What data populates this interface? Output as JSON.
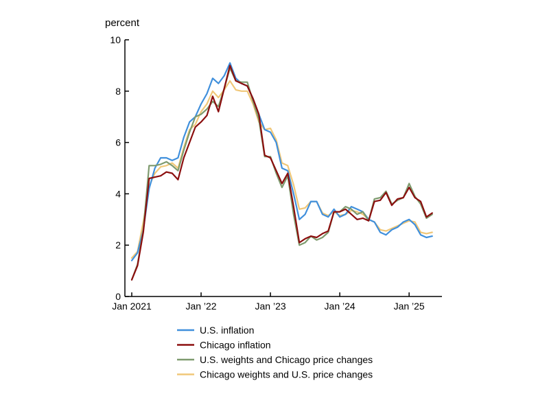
{
  "chart_data": {
    "type": "line",
    "title": "",
    "ylabel": "percent",
    "xlabel": "",
    "ylim": [
      0,
      10
    ],
    "yticks": [
      0,
      2,
      4,
      6,
      8,
      10
    ],
    "xlim": [
      "2021-01",
      "2025-05"
    ],
    "xticks": [
      {
        "date": "2021-01",
        "label": "Jan 2021"
      },
      {
        "date": "2022-01",
        "label": "Jan ’22"
      },
      {
        "date": "2023-01",
        "label": "Jan ’23"
      },
      {
        "date": "2024-01",
        "label": "Jan ’24"
      },
      {
        "date": "2025-01",
        "label": "Jan ’25"
      }
    ],
    "grid": false,
    "legend_position": "bottom",
    "x": [
      "2021-01",
      "2021-02",
      "2021-03",
      "2021-04",
      "2021-05",
      "2021-06",
      "2021-07",
      "2021-08",
      "2021-09",
      "2021-10",
      "2021-11",
      "2021-12",
      "2022-01",
      "2022-02",
      "2022-03",
      "2022-04",
      "2022-05",
      "2022-06",
      "2022-07",
      "2022-08",
      "2022-09",
      "2022-10",
      "2022-11",
      "2022-12",
      "2023-01",
      "2023-02",
      "2023-03",
      "2023-04",
      "2023-05",
      "2023-06",
      "2023-07",
      "2023-08",
      "2023-09",
      "2023-10",
      "2023-11",
      "2023-12",
      "2024-01",
      "2024-02",
      "2024-03",
      "2024-04",
      "2024-05",
      "2024-06",
      "2024-07",
      "2024-08",
      "2024-09",
      "2024-10",
      "2024-11",
      "2024-12",
      "2025-01",
      "2025-02",
      "2025-03",
      "2025-04",
      "2025-05"
    ],
    "series": [
      {
        "name": "U.S. inflation",
        "color": "#3f8fdc",
        "values": [
          1.4,
          1.7,
          2.6,
          4.2,
          5.0,
          5.4,
          5.4,
          5.3,
          5.4,
          6.2,
          6.8,
          7.0,
          7.5,
          7.9,
          8.5,
          8.3,
          8.6,
          9.1,
          8.5,
          8.3,
          8.2,
          7.7,
          7.1,
          6.5,
          6.4,
          6.0,
          5.0,
          4.9,
          4.0,
          3.0,
          3.2,
          3.7,
          3.7,
          3.2,
          3.1,
          3.4,
          3.1,
          3.2,
          3.5,
          3.4,
          3.3,
          3.0,
          2.9,
          2.5,
          2.4,
          2.6,
          2.7,
          2.9,
          3.0,
          2.8,
          2.4,
          2.3,
          2.35
        ]
      },
      {
        "name": "Chicago inflation",
        "color": "#8b0e0e",
        "values": [
          0.65,
          1.2,
          2.5,
          4.6,
          4.65,
          4.7,
          4.85,
          4.8,
          4.55,
          5.4,
          6.0,
          6.6,
          6.8,
          7.05,
          7.8,
          7.2,
          8.1,
          9.0,
          8.4,
          8.3,
          8.2,
          7.7,
          7.1,
          5.5,
          5.4,
          4.9,
          4.4,
          4.8,
          3.5,
          2.1,
          2.25,
          2.35,
          2.3,
          2.45,
          2.55,
          3.3,
          3.3,
          3.4,
          3.2,
          3.0,
          3.05,
          2.95,
          3.7,
          3.75,
          4.05,
          3.55,
          3.8,
          3.85,
          4.25,
          3.85,
          3.7,
          3.1,
          3.25
        ]
      },
      {
        "name": "U.S. weights and Chicago price changes",
        "color": "#7e9a6e",
        "values": [
          0.65,
          1.25,
          2.6,
          5.1,
          5.1,
          5.15,
          5.25,
          5.1,
          4.9,
          5.7,
          6.4,
          7.0,
          7.1,
          7.3,
          7.6,
          7.4,
          8.1,
          8.9,
          8.4,
          8.35,
          8.35,
          7.6,
          6.9,
          5.45,
          5.45,
          4.8,
          4.25,
          4.7,
          3.2,
          2.0,
          2.1,
          2.35,
          2.2,
          2.3,
          2.5,
          3.3,
          3.3,
          3.5,
          3.4,
          3.2,
          3.3,
          2.95,
          3.8,
          3.85,
          4.1,
          3.6,
          3.75,
          3.85,
          4.4,
          3.9,
          3.6,
          3.05,
          3.2
        ]
      },
      {
        "name": "Chicago weights and U.S. price changes",
        "color": "#f0c778",
        "values": [
          1.5,
          1.75,
          2.9,
          4.3,
          4.8,
          5.05,
          5.1,
          5.2,
          5.0,
          5.8,
          6.5,
          6.7,
          7.2,
          7.5,
          8.0,
          7.75,
          8.05,
          8.4,
          8.05,
          8.0,
          8.0,
          7.5,
          6.8,
          6.5,
          6.55,
          6.1,
          5.2,
          5.1,
          4.35,
          3.4,
          3.45,
          3.7,
          3.7,
          3.25,
          3.15,
          3.3,
          3.15,
          3.2,
          3.35,
          3.3,
          3.2,
          3.0,
          2.9,
          2.6,
          2.55,
          2.65,
          2.75,
          2.85,
          2.95,
          2.9,
          2.5,
          2.45,
          2.5
        ]
      }
    ]
  }
}
